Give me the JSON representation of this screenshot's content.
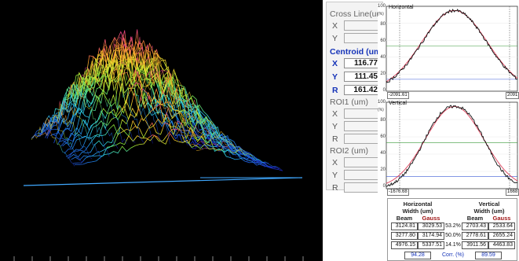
{
  "panel": {
    "cross_line": {
      "title": "Cross Line(um)",
      "x_label": "X",
      "y_label": "Y"
    },
    "centroid": {
      "title": "Centroid (um)",
      "x_label": "X",
      "x_value": "116.77",
      "y_label": "Y",
      "y_value": "111.45",
      "r_label": "R",
      "r_value": "161.42"
    },
    "roi1": {
      "title": "ROI1 (um)",
      "x_label": "X",
      "y_label": "Y",
      "r_label": "R"
    },
    "roi2": {
      "title": "ROI2 (um)",
      "x_label": "X",
      "y_label": "Y",
      "r_label": "R"
    }
  },
  "plots": {
    "pct_label": "(%)",
    "y_ticks": [
      "100",
      "80",
      "60",
      "40",
      "20",
      "0"
    ],
    "horizontal": {
      "title": "Horizontal",
      "x_min": "-2091.61",
      "x_max": "2091"
    },
    "vertical": {
      "title": "Vertical",
      "x_min": "-1676.68",
      "x_max": "1668"
    }
  },
  "table": {
    "horizontal_header": "Horizontal",
    "horizontal_sub": "Width  (um)",
    "vertical_header": "Vertical",
    "vertical_sub": "Width  (um)",
    "beam_label": "Beam",
    "gauss_label": "Gauss",
    "rows": [
      {
        "h_beam": "3124.81",
        "h_gauss": "3029.53",
        "pct": "53.2%",
        "v_beam": "2703.43",
        "v_gauss": "2533.64"
      },
      {
        "h_beam": "3277.80",
        "h_gauss": "3174.94",
        "pct": "50.0%",
        "v_beam": "2778.61",
        "v_gauss": "2655.24"
      },
      {
        "h_beam": "4976.15",
        "h_gauss": "5337.51",
        "pct": "14.1%",
        "v_beam": "3911.56",
        "v_gauss": "4463.83"
      }
    ],
    "corr_h": "94.28",
    "corr_label": "Corr. (%)",
    "corr_v": "89.59"
  },
  "colors": {
    "centroid_blue": "#1533b8",
    "gauss_red": "#a01818",
    "fit_red": "#e0405a"
  }
}
